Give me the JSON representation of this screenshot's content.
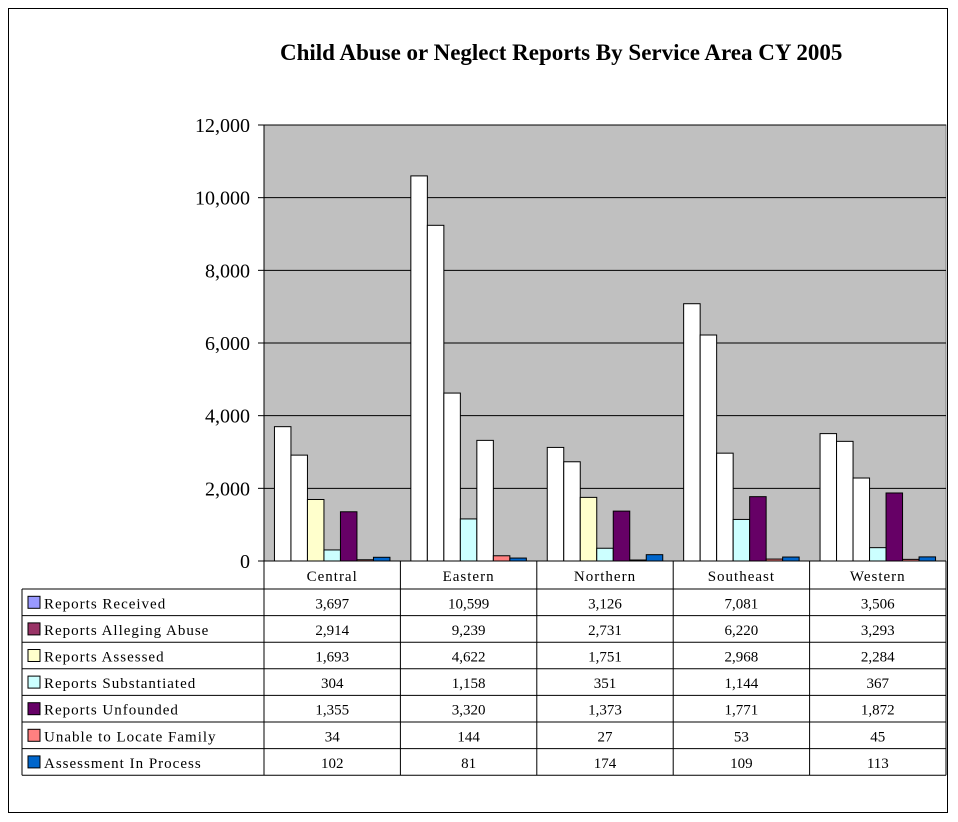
{
  "chart_data": {
    "type": "bar",
    "title": "Child Abuse or Neglect Reports By Service Area CY 2005",
    "categories": [
      "Central",
      "Eastern",
      "Northern",
      "Southeast",
      "Western"
    ],
    "ylim": [
      0,
      12000
    ],
    "yticks": [
      0,
      2000,
      4000,
      6000,
      8000,
      10000,
      12000
    ],
    "ytick_labels": [
      "0",
      "2,000",
      "4,000",
      "6,000",
      "8,000",
      "10,000",
      "12,000"
    ],
    "grid": true,
    "legend_placement": "data-table",
    "series": [
      {
        "name": "Reports Received",
        "color": "#9999ff",
        "values": [
          3697,
          10599,
          3126,
          7081,
          3506
        ],
        "labels": [
          "3,697",
          "10,599",
          "3,126",
          "7,081",
          "3,506"
        ]
      },
      {
        "name": "Reports Alleging Abuse",
        "color": "#993366",
        "values": [
          2914,
          9239,
          2731,
          6220,
          3293
        ],
        "labels": [
          "2,914",
          "9,239",
          "2,731",
          "6,220",
          "3,293"
        ]
      },
      {
        "name": "Reports Assessed",
        "color": "#ffffcc",
        "values": [
          1693,
          4622,
          1751,
          2968,
          2284
        ],
        "labels": [
          "1,693",
          "4,622",
          "1,751",
          "2,968",
          "2,284"
        ]
      },
      {
        "name": "Reports Substantiated",
        "color": "#ccffff",
        "values": [
          304,
          1158,
          351,
          1144,
          367
        ],
        "labels": [
          "304",
          "1,158",
          "351",
          "1,144",
          "367"
        ]
      },
      {
        "name": "Reports Unfounded",
        "color": "#660066",
        "values": [
          1355,
          3320,
          1373,
          1771,
          1872
        ],
        "labels": [
          "1,355",
          "3,320",
          "1,373",
          "1,771",
          "1,872"
        ]
      },
      {
        "name": "Unable to Locate Family",
        "color": "#ff8080",
        "values": [
          34,
          144,
          27,
          53,
          45
        ],
        "labels": [
          "34",
          "144",
          "27",
          "53",
          "45"
        ]
      },
      {
        "name": "Assessment In Process",
        "color": "#0066cc",
        "values": [
          102,
          81,
          174,
          109,
          113
        ],
        "labels": [
          "102",
          "81",
          "174",
          "109",
          "113"
        ]
      }
    ],
    "bar_fill_override": {
      "Reports Received": "#ffffff",
      "Reports Alleging Abuse": "#ffffff",
      "Reports Assessed": "#ffffcc",
      "Reports Substantiated": "#ccffff",
      "Reports Unfounded": "#660066",
      "Unable to Locate Family": "#ff8080",
      "Assessment In Process": "#0066cc"
    },
    "bar_fill_override_by_category": {
      "Eastern": {
        "Reports Assessed": "#ffffff",
        "Reports Unfounded": "#ffffff"
      },
      "Southeast": {
        "Reports Assessed": "#ffffff"
      },
      "Western": {
        "Reports Assessed": "#ffffff"
      }
    },
    "plot_background": "#c0c0c0"
  }
}
